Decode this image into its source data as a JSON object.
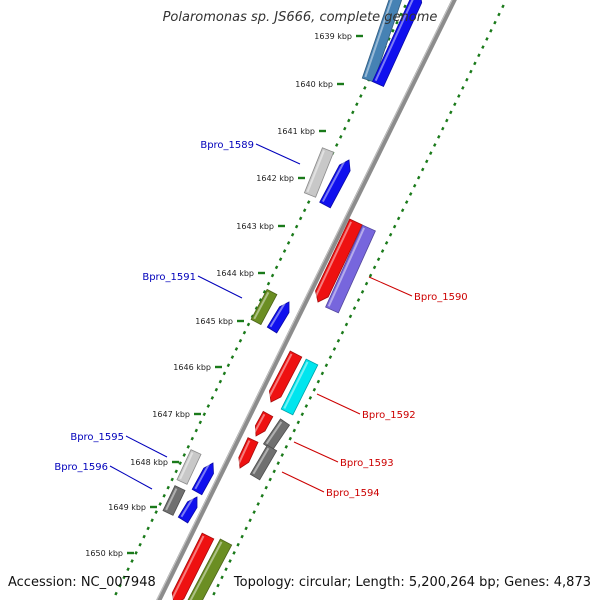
{
  "title": "Polaromonas sp. JS666, complete genome",
  "footer": {
    "accession": "Accession: NC_007948",
    "summary": "Topology: circular; Length: 5,200,264 bp; Genes: 4,873"
  },
  "colors": {
    "backbone": "#8c8c8c",
    "tick_marks": "#1a7a1a",
    "label_plus": "#0000bb",
    "label_minus": "#cc0000"
  },
  "tick_labels": [
    "1639 kbp",
    "1640 kbp",
    "1641 kbp",
    "1642 kbp",
    "1643 kbp",
    "1644 kbp",
    "1645 kbp",
    "1646 kbp",
    "1647 kbp",
    "1648 kbp",
    "1649 kbp",
    "1650 kbp"
  ],
  "gene_labels": [
    {
      "id": "Bpro_1589",
      "strand": "plus"
    },
    {
      "id": "Bpro_1590",
      "strand": "minus"
    },
    {
      "id": "Bpro_1591",
      "strand": "plus"
    },
    {
      "id": "Bpro_1592",
      "strand": "minus"
    },
    {
      "id": "Bpro_1593",
      "strand": "minus"
    },
    {
      "id": "Bpro_1594",
      "strand": "minus"
    },
    {
      "id": "Bpro_1595",
      "strand": "plus"
    },
    {
      "id": "Bpro_1596",
      "strand": "plus"
    }
  ],
  "features": [
    {
      "name": "plus-feature-1639-light",
      "strand": "plus",
      "color": "#4682b4"
    },
    {
      "name": "plus-feature-1639-blue",
      "strand": "plus",
      "color": "#1010ee"
    },
    {
      "name": "plus-feature-1589-grey",
      "strand": "plus",
      "color": "#c8c8c8"
    },
    {
      "name": "plus-feature-1589-blue",
      "strand": "plus",
      "color": "#1010ee"
    },
    {
      "name": "minus-feature-1590-red",
      "strand": "minus",
      "color": "#ee1111"
    },
    {
      "name": "minus-feature-1590-purple",
      "strand": "minus",
      "color": "#7766dd"
    },
    {
      "name": "plus-feature-1591-olive",
      "strand": "plus",
      "color": "#6b8e23"
    },
    {
      "name": "plus-feature-1591-blue",
      "strand": "plus",
      "color": "#1010ee"
    },
    {
      "name": "minus-feature-1592-red",
      "strand": "minus",
      "color": "#ee1111"
    },
    {
      "name": "minus-feature-1592-cyan",
      "strand": "minus",
      "color": "#00e5ee"
    },
    {
      "name": "minus-feature-1593-red",
      "strand": "minus",
      "color": "#ee1111"
    },
    {
      "name": "minus-feature-1593-grey",
      "strand": "minus",
      "color": "#707070"
    },
    {
      "name": "minus-feature-1594-red",
      "strand": "minus",
      "color": "#ee1111"
    },
    {
      "name": "minus-feature-1594-grey",
      "strand": "minus",
      "color": "#707070"
    },
    {
      "name": "plus-feature-1595-grey",
      "strand": "plus",
      "color": "#c8c8c8"
    },
    {
      "name": "plus-feature-1595-blue",
      "strand": "plus",
      "color": "#1010ee"
    },
    {
      "name": "plus-feature-1596-grey",
      "strand": "plus",
      "color": "#707070"
    },
    {
      "name": "plus-feature-1596-blue",
      "strand": "plus",
      "color": "#1010ee"
    },
    {
      "name": "minus-feature-1650-red",
      "strand": "minus",
      "color": "#ee1111"
    },
    {
      "name": "minus-feature-1650-olive",
      "strand": "minus",
      "color": "#6b8e23"
    }
  ]
}
